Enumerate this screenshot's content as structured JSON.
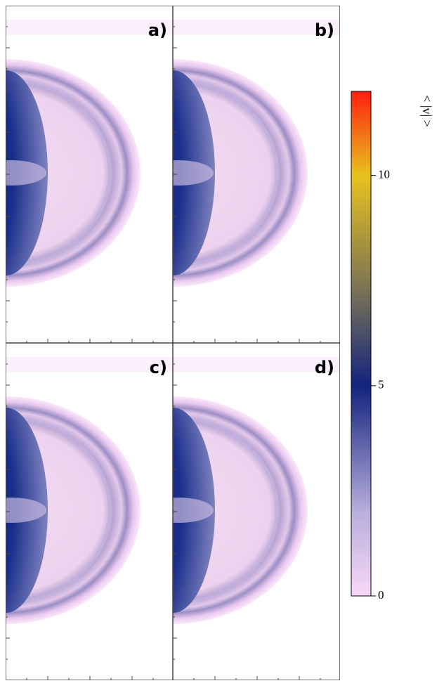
{
  "chart_data": {
    "type": "heatmap",
    "panels": [
      {
        "label": "a)"
      },
      {
        "label": "b)"
      },
      {
        "label": "c)"
      },
      {
        "label": "d)"
      }
    ],
    "colorbar": {
      "label": "< |v| >",
      "ylim": [
        0,
        12
      ],
      "yticks": [
        0,
        5,
        10
      ],
      "colorscale": [
        {
          "value": 0,
          "color": "#f8d8f8"
        },
        {
          "value": 2,
          "color": "#b8aedc"
        },
        {
          "value": 5,
          "color": "#13237e"
        },
        {
          "value": 7,
          "color": "#6e6a5a"
        },
        {
          "value": 10,
          "color": "#e8c21e"
        },
        {
          "value": 12,
          "color": "#ff1e10"
        }
      ]
    }
  }
}
